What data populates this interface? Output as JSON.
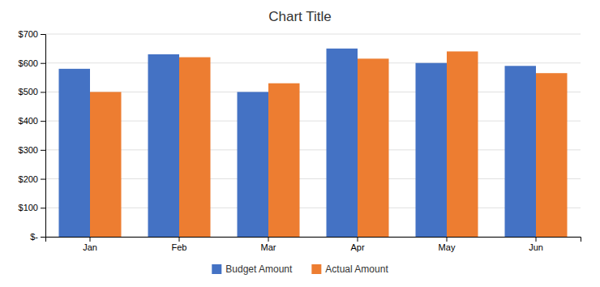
{
  "chart_data": {
    "type": "bar",
    "title": "Chart Title",
    "categories": [
      "Jan",
      "Feb",
      "Mar",
      "Apr",
      "May",
      "Jun"
    ],
    "series": [
      {
        "name": "Budget Amount",
        "color": "#4472C4",
        "values": [
          580,
          630,
          500,
          650,
          600,
          590
        ]
      },
      {
        "name": "Actual Amount",
        "color": "#ED7D31",
        "values": [
          500,
          620,
          530,
          615,
          640,
          565
        ]
      }
    ],
    "ylim": [
      0,
      700
    ],
    "yticks": [
      {
        "value": 0,
        "label": "$-"
      },
      {
        "value": 100,
        "label": "$100"
      },
      {
        "value": 200,
        "label": "$200"
      },
      {
        "value": 300,
        "label": "$300"
      },
      {
        "value": 400,
        "label": "$400"
      },
      {
        "value": 500,
        "label": "$500"
      },
      {
        "value": 600,
        "label": "$600"
      },
      {
        "value": 700,
        "label": "$700"
      }
    ],
    "grid": true,
    "legend": "bottom"
  }
}
